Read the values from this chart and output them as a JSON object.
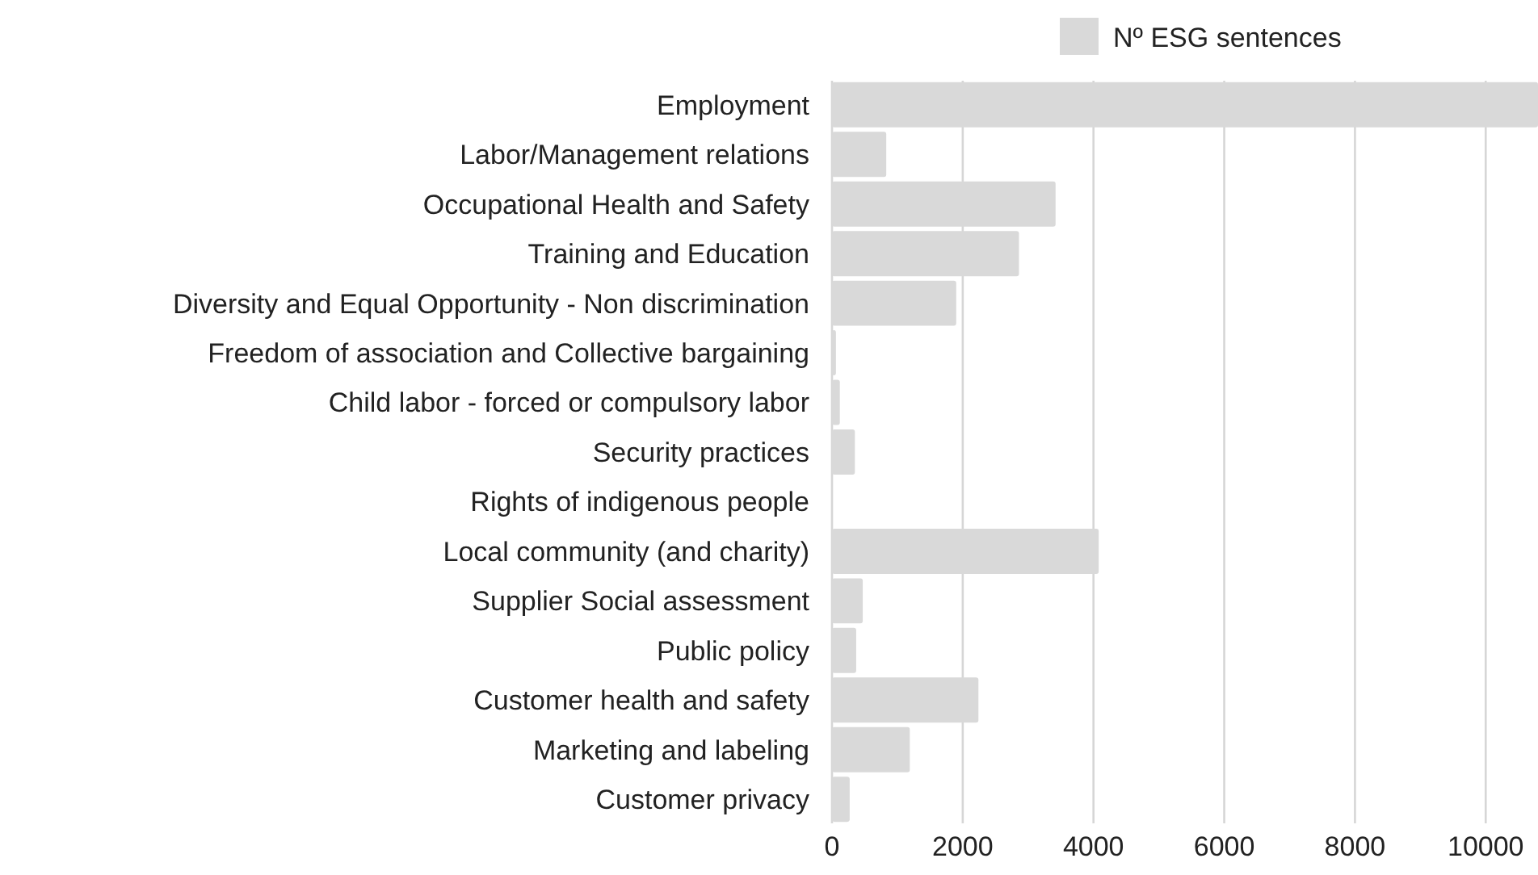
{
  "chart_data": {
    "type": "bar",
    "orientation": "horizontal",
    "categories": [
      "Employment",
      "Labor/Management relations",
      "Occupational Health and Safety",
      "Training and Education",
      "Diversity and Equal Opportunity - Non discrimination",
      "Freedom of association and Collective bargaining",
      "Child labor - forced or compulsory labor",
      "Security practices",
      "Rights of indigenous people",
      "Local community (and charity)",
      "Supplier Social assessment",
      "Public policy",
      "Customer health and safety",
      "Marketing and labeling",
      "Customer privacy"
    ],
    "series": [
      {
        "name": "Nº ESG sentences",
        "color": "#d9d9d9",
        "values": [
          10800,
          830,
          3420,
          2860,
          1900,
          60,
          120,
          350,
          0,
          4080,
          470,
          370,
          2240,
          1190,
          270
        ]
      }
    ],
    "xlim": [
      0,
      10800
    ],
    "xticks": [
      0,
      2000,
      4000,
      6000,
      8000,
      10000
    ],
    "grid": "x",
    "legend": "top right"
  }
}
